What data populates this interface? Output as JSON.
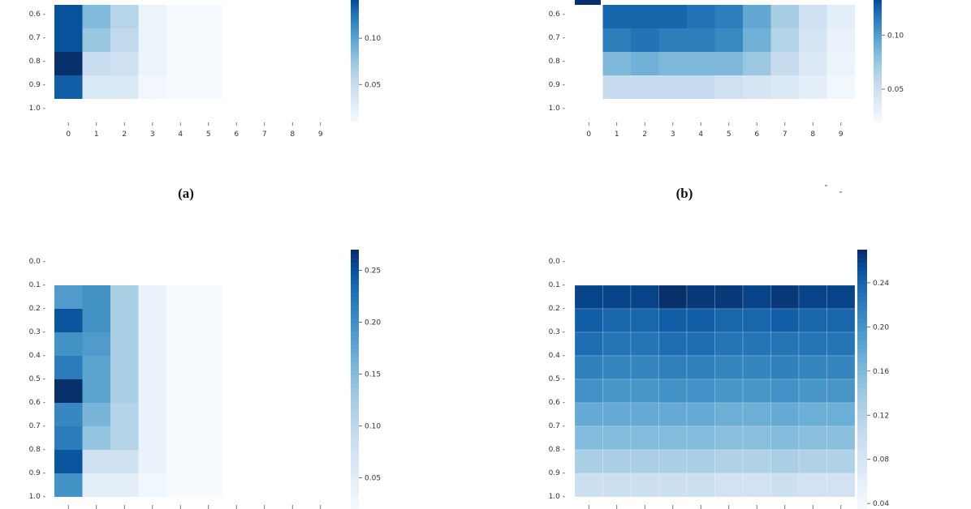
{
  "captions": {
    "a": "(a)",
    "b": "(b)"
  },
  "chart_data": [
    {
      "id": "a",
      "type": "heatmap",
      "y_labels": [
        "0.6",
        "0.7",
        "0.8",
        "0.9",
        "1.0"
      ],
      "x_labels": [
        "0",
        "1",
        "2",
        "3",
        "4",
        "5",
        "6",
        "7",
        "8",
        "9"
      ],
      "colorbar": {
        "ticks": [
          "0.10",
          "0.05"
        ],
        "tick_values": [
          0.1,
          0.05
        ],
        "range": [
          0.01,
          0.15
        ]
      },
      "grid_values": [
        [
          0.14,
          0.085,
          0.06,
          0.02,
          0.008,
          0.006,
          null,
          null,
          null,
          null
        ],
        [
          0.14,
          0.075,
          0.055,
          0.02,
          0.008,
          0.006,
          null,
          null,
          null,
          null
        ],
        [
          0.15,
          0.05,
          0.045,
          0.02,
          0.008,
          0.006,
          null,
          null,
          null,
          null
        ],
        [
          0.135,
          0.035,
          0.035,
          0.015,
          0.008,
          0.006,
          null,
          null,
          null,
          null
        ],
        [
          null,
          null,
          null,
          null,
          null,
          null,
          null,
          null,
          null,
          null
        ]
      ]
    },
    {
      "id": "b",
      "type": "heatmap",
      "y_labels": [
        "0.6",
        "0.7",
        "0.8",
        "0.9",
        "1.0"
      ],
      "x_labels": [
        "0",
        "1",
        "2",
        "3",
        "4",
        "5",
        "6",
        "7",
        "8",
        "9"
      ],
      "colorbar": {
        "ticks": [
          "0.10",
          "0.05"
        ],
        "tick_values": [
          0.1,
          0.05
        ],
        "range": [
          0.02,
          0.14
        ]
      },
      "grid_values": [
        [
          null,
          0.125,
          0.125,
          0.125,
          0.12,
          0.115,
          0.095,
          0.07,
          0.05,
          0.035
        ],
        [
          null,
          0.115,
          0.12,
          0.115,
          0.115,
          0.11,
          0.09,
          0.065,
          0.045,
          0.03
        ],
        [
          null,
          0.085,
          0.09,
          0.085,
          0.085,
          0.085,
          0.075,
          0.055,
          0.04,
          0.028
        ],
        [
          null,
          0.055,
          0.055,
          0.055,
          0.055,
          0.05,
          0.045,
          0.04,
          0.033,
          0.025
        ],
        [
          null,
          null,
          null,
          null,
          null,
          null,
          null,
          null,
          null,
          null
        ]
      ]
    },
    {
      "id": "c",
      "type": "heatmap",
      "y_labels": [
        "0.0",
        "0.1",
        "0.2",
        "0.3",
        "0.4",
        "0.5",
        "0.6",
        "0.7",
        "0.8",
        "0.9",
        "1.0"
      ],
      "x_labels": [],
      "colorbar": {
        "ticks": [
          "0.25",
          "0.20",
          "0.15",
          "0.10",
          "0.05"
        ],
        "tick_values": [
          0.25,
          0.2,
          0.15,
          0.1,
          0.05
        ],
        "range": [
          0.02,
          0.27
        ]
      },
      "grid_values": [
        [
          null,
          null,
          null,
          null,
          null,
          null,
          null,
          null,
          null,
          null
        ],
        [
          0.19,
          0.2,
          0.12,
          0.04,
          0.02,
          0.015,
          null,
          null,
          null,
          null
        ],
        [
          0.25,
          0.2,
          0.12,
          0.04,
          0.02,
          0.015,
          null,
          null,
          null,
          null
        ],
        [
          0.2,
          0.19,
          0.12,
          0.04,
          0.02,
          0.015,
          null,
          null,
          null,
          null
        ],
        [
          0.22,
          0.18,
          0.12,
          0.04,
          0.02,
          0.015,
          null,
          null,
          null,
          null
        ],
        [
          0.27,
          0.18,
          0.12,
          0.04,
          0.02,
          0.015,
          null,
          null,
          null,
          null
        ],
        [
          0.21,
          0.16,
          0.11,
          0.04,
          0.02,
          0.015,
          null,
          null,
          null,
          null
        ],
        [
          0.22,
          0.14,
          0.11,
          0.04,
          0.02,
          0.015,
          null,
          null,
          null,
          null
        ],
        [
          0.25,
          0.08,
          0.08,
          0.04,
          0.02,
          0.015,
          null,
          null,
          null,
          null
        ],
        [
          0.2,
          0.05,
          0.05,
          0.03,
          0.015,
          0.012,
          null,
          null,
          null,
          null
        ],
        [
          null,
          null,
          null,
          null,
          null,
          null,
          null,
          null,
          null,
          null
        ]
      ]
    },
    {
      "id": "d",
      "type": "heatmap",
      "y_labels": [
        "0.0",
        "0.1",
        "0.2",
        "0.3",
        "0.4",
        "0.5",
        "0.6",
        "0.7",
        "0.8",
        "0.9",
        "1.0"
      ],
      "x_labels": [],
      "colorbar": {
        "ticks": [
          "0.24",
          "0.20",
          "0.16",
          "0.12",
          "0.08",
          "0.04"
        ],
        "tick_values": [
          0.24,
          0.2,
          0.16,
          0.12,
          0.08,
          0.04
        ],
        "range": [
          0.04,
          0.27
        ]
      },
      "grid_values": [
        [
          null,
          null,
          null,
          null,
          null,
          null,
          null,
          null,
          null,
          null
        ],
        [
          0.26,
          0.26,
          0.26,
          0.27,
          0.265,
          0.265,
          0.26,
          0.265,
          0.26,
          0.26
        ],
        [
          0.245,
          0.24,
          0.24,
          0.245,
          0.245,
          0.24,
          0.24,
          0.245,
          0.24,
          0.24
        ],
        [
          0.235,
          0.23,
          0.23,
          0.235,
          0.235,
          0.23,
          0.23,
          0.23,
          0.23,
          0.23
        ],
        [
          0.22,
          0.215,
          0.215,
          0.22,
          0.22,
          0.215,
          0.215,
          0.22,
          0.215,
          0.215
        ],
        [
          0.205,
          0.2,
          0.2,
          0.205,
          0.205,
          0.2,
          0.2,
          0.205,
          0.2,
          0.2
        ],
        [
          0.18,
          0.18,
          0.18,
          0.18,
          0.18,
          0.175,
          0.175,
          0.18,
          0.175,
          0.175
        ],
        [
          0.16,
          0.16,
          0.16,
          0.16,
          0.16,
          0.155,
          0.155,
          0.16,
          0.155,
          0.155
        ],
        [
          0.13,
          0.13,
          0.13,
          0.13,
          0.13,
          0.125,
          0.125,
          0.13,
          0.125,
          0.125
        ],
        [
          0.095,
          0.095,
          0.095,
          0.095,
          0.095,
          0.09,
          0.09,
          0.095,
          0.09,
          0.09
        ],
        [
          null,
          null,
          null,
          null,
          null,
          null,
          null,
          null,
          null,
          null
        ]
      ]
    }
  ]
}
